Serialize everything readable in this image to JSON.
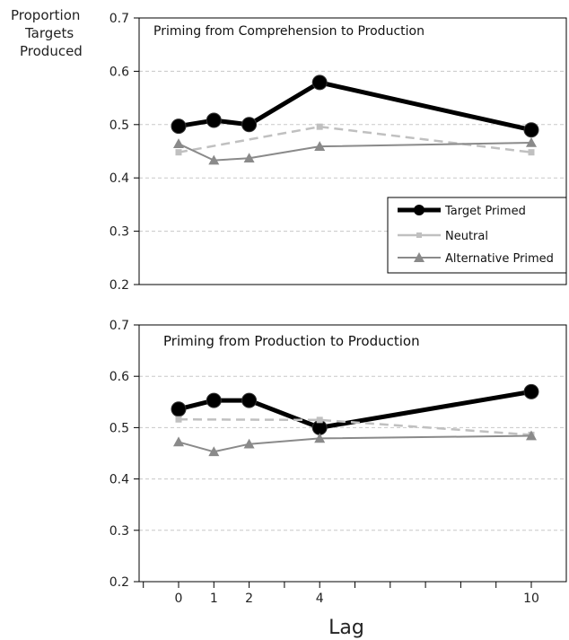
{
  "figure": {
    "ylabel_lines": [
      "Proportion",
      "Targets",
      "Produced"
    ],
    "xlabel": "Lag",
    "legend": [
      "Target Primed",
      "Neutral",
      "Alternative Primed"
    ]
  },
  "colors": {
    "target": "#000000",
    "neutral": "#c0c0c0",
    "alternative": "#8a8a8a",
    "grid": "#c8c8c8"
  },
  "chart_data": [
    {
      "type": "line",
      "title": "Priming from Comprehension to Production",
      "xlabel": "Lag",
      "ylabel": "Proportion Targets Produced",
      "x": [
        0,
        1,
        2,
        4,
        10
      ],
      "xticks": [
        0,
        1,
        2,
        4,
        10
      ],
      "yticks": [
        "0.2",
        "0.3",
        "0.4",
        "0.5",
        "0.6",
        "0.7"
      ],
      "ylim": [
        0.2,
        0.7
      ],
      "grid": true,
      "legend_position": "right",
      "series": [
        {
          "name": "Target Primed",
          "values": [
            0.497,
            0.508,
            0.5,
            0.579,
            0.49
          ]
        },
        {
          "name": "Neutral",
          "values": [
            0.448,
            null,
            null,
            0.496,
            0.448
          ]
        },
        {
          "name": "Alternative Primed",
          "values": [
            0.464,
            0.433,
            0.437,
            0.459,
            0.466
          ]
        }
      ]
    },
    {
      "type": "line",
      "title": "Priming from Production to Production",
      "xlabel": "Lag",
      "ylabel": "Proportion Targets Produced",
      "x": [
        0,
        1,
        2,
        4,
        10
      ],
      "xticks": [
        0,
        1,
        2,
        4,
        10
      ],
      "yticks": [
        "0.2",
        "0.3",
        "0.4",
        "0.5",
        "0.6",
        "0.7"
      ],
      "ylim": [
        0.2,
        0.7
      ],
      "grid": true,
      "series": [
        {
          "name": "Target Primed",
          "values": [
            0.536,
            0.553,
            0.553,
            0.5,
            0.57
          ]
        },
        {
          "name": "Neutral",
          "values": [
            0.516,
            null,
            null,
            0.515,
            0.486
          ]
        },
        {
          "name": "Alternative Primed",
          "values": [
            0.472,
            0.453,
            0.468,
            0.479,
            0.484
          ]
        }
      ]
    }
  ]
}
